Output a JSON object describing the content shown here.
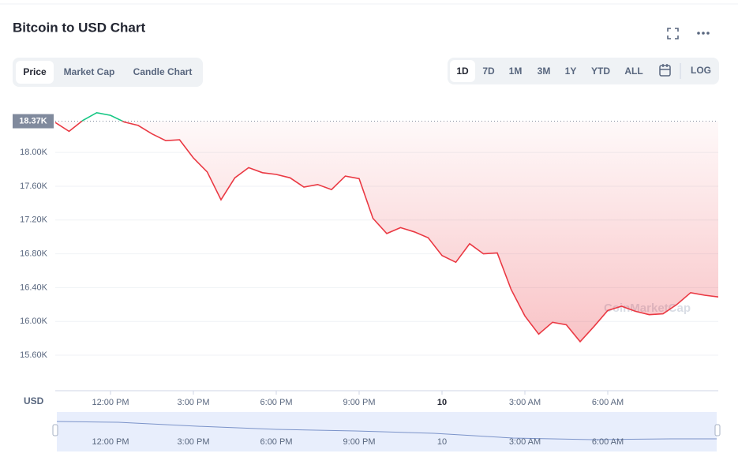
{
  "chart_data": {
    "type": "line",
    "title": "Bitcoin to USD Chart",
    "ylabel": "USD",
    "x": [
      10,
      10.5,
      11,
      11.5,
      12,
      12.5,
      13,
      13.5,
      14,
      14.5,
      15,
      15.5,
      16,
      16.5,
      17,
      17.5,
      18,
      18.5,
      19,
      19.5,
      20,
      20.5,
      21,
      21.5,
      22,
      22.5,
      23,
      23.5,
      24,
      24.5,
      25,
      25.5,
      26,
      26.5,
      27,
      27.5,
      28,
      28.5,
      29,
      29.5,
      30,
      30.5,
      31,
      31.5,
      32,
      32.5,
      33,
      33.5,
      34
    ],
    "values": [
      18355,
      18250,
      18380,
      18470,
      18440,
      18360,
      18320,
      18220,
      18140,
      18150,
      17935,
      17770,
      17440,
      17700,
      17820,
      17760,
      17740,
      17700,
      17590,
      17620,
      17560,
      17720,
      17690,
      17220,
      17040,
      17110,
      17060,
      16990,
      16780,
      16700,
      16920,
      16800,
      16810,
      16380,
      16065,
      15850,
      15990,
      15960,
      15760,
      15940,
      16130,
      16180,
      16120,
      16080,
      16090,
      16200,
      16340,
      16310,
      16290
    ],
    "up_color": "#16c784",
    "down_color": "#ea3943",
    "reference": {
      "value": 18370,
      "label": "18.37K"
    },
    "xlim": [
      10,
      34
    ],
    "xticks": [
      {
        "value": 12,
        "label": "12:00 PM"
      },
      {
        "value": 15,
        "label": "3:00 PM"
      },
      {
        "value": 18,
        "label": "6:00 PM"
      },
      {
        "value": 21,
        "label": "9:00 PM"
      },
      {
        "value": 24,
        "label": "10"
      },
      {
        "value": 27,
        "label": "3:00 AM"
      },
      {
        "value": 30,
        "label": "6:00 AM"
      }
    ],
    "ylim": [
      15180,
      18590
    ],
    "yticks": [
      {
        "value": 15600,
        "label": "15.60K"
      },
      {
        "value": 16000,
        "label": "16.00K"
      },
      {
        "value": 16400,
        "label": "16.40K"
      },
      {
        "value": 16800,
        "label": "16.80K"
      },
      {
        "value": 17200,
        "label": "17.20K"
      },
      {
        "value": 17600,
        "label": "17.60K"
      },
      {
        "value": 18000,
        "label": "18.00K"
      }
    ],
    "grid": true
  },
  "ui": {
    "tabs": [
      "Price",
      "Market Cap",
      "Candle Chart"
    ],
    "ranges": [
      "1D",
      "7D",
      "1M",
      "3M",
      "1Y",
      "YTD",
      "ALL"
    ],
    "log_button": "LOG",
    "watermark": "CoinMarketCap"
  }
}
